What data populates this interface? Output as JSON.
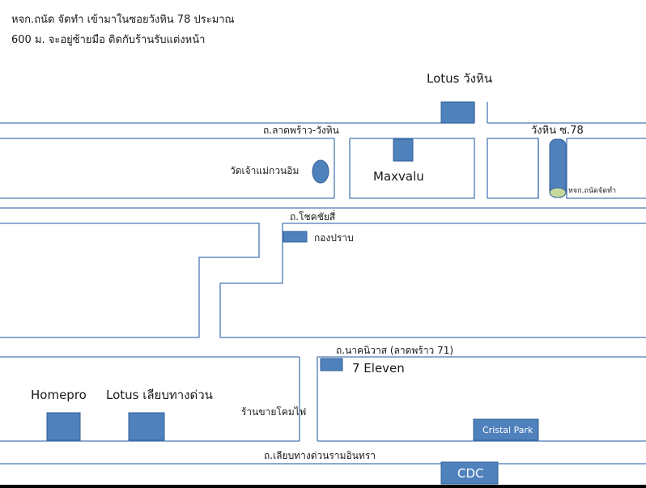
{
  "header": {
    "line1": "หจก.ถนัด จัดทำ  เข้ามาในซอยวังหิน 78 ประมาณ",
    "line2": "600 ม.  จะอยู่ซ้ายมือ ติดกับร้านรับแต่งหน้า"
  },
  "roads": {
    "ladprao_wanghin": "ถ.ลาดพร้าว-วังหิน",
    "chokchai4": "ถ.โชคชัยสี่",
    "nakniwat": "ถ.นาคนิวาส (ลาดพร้าว 71)",
    "liap_thang_duan": "ถ.เลียบทางด่วนรามอินทรา",
    "wanghin_soi78": "วังหิน ซ.78"
  },
  "places": {
    "lotus_wanghin": "Lotus วังหิน",
    "temple": "วัดเจ้าแม่กวนอิม",
    "maxvalu": "Maxvalu",
    "destination": "หจก.ถนัดจัดทำ",
    "police": "กองปราบ",
    "seven_eleven": "7 Eleven",
    "homepro": "Homepro",
    "lotus_liap": "Lotus เลียบทางด่วน",
    "lamp_shop": "ร้านขายโคมไฟ",
    "cristal_park": "Cristal Park",
    "cdc": "CDC"
  },
  "colors": {
    "line": "#4a78b5",
    "building": "#4f81bd",
    "building_border": "#2f5f96",
    "destination_dot": "#c6d99a"
  }
}
